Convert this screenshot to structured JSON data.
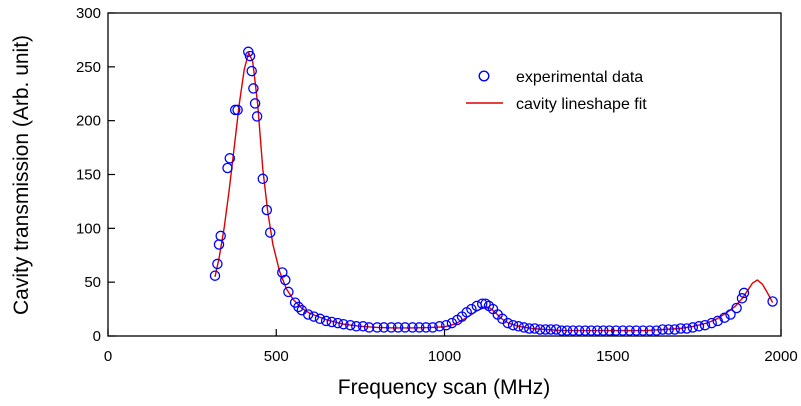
{
  "chart_data": {
    "type": "line",
    "xlabel": "Frequency scan (MHz)",
    "ylabel": "Cavity transmission (Arb. unit)",
    "xlim": [
      0,
      2000
    ],
    "ylim": [
      0,
      300
    ],
    "xticks": [
      0,
      500,
      1000,
      1500,
      2000
    ],
    "yticks": [
      0,
      50,
      100,
      150,
      200,
      250,
      300
    ],
    "grid": false,
    "legend_position": "top-right",
    "series": [
      {
        "name": "experimental data",
        "kind": "scatter",
        "marker": "open-circle",
        "color": "#0000ff",
        "x": [
          318,
          325,
          330,
          335,
          355,
          362,
          378,
          385,
          417,
          422,
          427,
          432,
          437,
          443,
          460,
          472,
          482,
          518,
          527,
          536,
          556,
          566,
          576,
          595,
          612,
          630,
          648,
          665,
          683,
          700,
          720,
          738,
          758,
          776,
          800,
          820,
          842,
          862,
          883,
          905,
          925,
          945,
          965,
          985,
          1005,
          1022,
          1038,
          1052,
          1066,
          1080,
          1096,
          1112,
          1122,
          1132,
          1144,
          1158,
          1172,
          1188,
          1204,
          1220,
          1236,
          1252,
          1268,
          1284,
          1300,
          1316,
          1332,
          1348,
          1364,
          1382,
          1400,
          1418,
          1436,
          1454,
          1472,
          1490,
          1510,
          1530,
          1550,
          1570,
          1590,
          1610,
          1630,
          1648,
          1666,
          1684,
          1702,
          1720,
          1738,
          1756,
          1774,
          1794,
          1812,
          1832,
          1850,
          1868,
          1884,
          1890,
          1975
        ],
        "y": [
          56,
          67,
          85,
          93,
          156,
          165,
          210,
          210,
          264,
          260,
          246,
          230,
          216,
          204,
          146,
          117,
          96,
          59,
          52,
          41,
          31,
          27,
          24,
          20,
          18,
          16,
          14,
          13,
          12,
          11,
          10,
          9,
          9,
          8,
          8,
          8,
          8,
          8,
          8,
          8,
          8,
          8,
          8,
          9,
          10,
          12,
          15,
          18,
          22,
          25,
          28,
          30,
          30,
          28,
          25,
          20,
          16,
          12,
          10,
          9,
          8,
          7,
          7,
          6,
          6,
          6,
          6,
          5,
          5,
          5,
          5,
          5,
          5,
          5,
          5,
          5,
          5,
          5,
          5,
          5,
          5,
          5,
          5,
          6,
          6,
          6,
          7,
          7,
          8,
          9,
          10,
          12,
          14,
          17,
          20,
          26,
          35,
          40,
          32
        ]
      },
      {
        "name": "cavity lineshape fit",
        "kind": "line",
        "color": "#dd0000",
        "x": [
          318,
          330,
          345,
          360,
          375,
          390,
          405,
          418,
          430,
          445,
          460,
          475,
          490,
          510,
          530,
          550,
          575,
          600,
          650,
          700,
          750,
          800,
          850,
          900,
          950,
          1000,
          1030,
          1060,
          1080,
          1100,
          1115,
          1125,
          1135,
          1150,
          1170,
          1190,
          1220,
          1260,
          1300,
          1350,
          1400,
          1450,
          1500,
          1550,
          1600,
          1650,
          1700,
          1740,
          1780,
          1810,
          1840,
          1865,
          1885,
          1900,
          1915,
          1930,
          1945,
          1960,
          1975
        ],
        "y": [
          55,
          72,
          100,
          135,
          175,
          215,
          248,
          263,
          255,
          215,
          155,
          115,
          85,
          60,
          44,
          34,
          26,
          21,
          15,
          11,
          9,
          8,
          7.5,
          7.5,
          7.8,
          8.5,
          11,
          16,
          20,
          24,
          26,
          27,
          26,
          22,
          16,
          12,
          9,
          7,
          6,
          5,
          5,
          5,
          5,
          5,
          5,
          6,
          7,
          9,
          12,
          16,
          22,
          28,
          35,
          42,
          49,
          52,
          48,
          40,
          31
        ]
      }
    ]
  }
}
